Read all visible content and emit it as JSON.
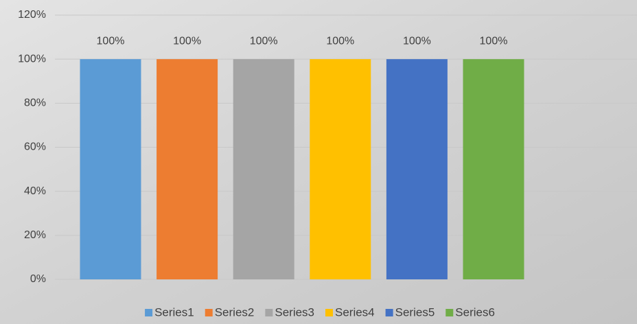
{
  "chart_data": {
    "type": "bar",
    "categories": [
      null
    ],
    "series": [
      {
        "name": "Series1",
        "color": "#5b9bd5",
        "values": [
          100
        ],
        "value_labels": [
          "100%"
        ]
      },
      {
        "name": "Series2",
        "color": "#ed7d31",
        "values": [
          100
        ],
        "value_labels": [
          "100%"
        ]
      },
      {
        "name": "Series3",
        "color": "#a5a5a5",
        "values": [
          100
        ],
        "value_labels": [
          "100%"
        ]
      },
      {
        "name": "Series4",
        "color": "#ffc000",
        "values": [
          100
        ],
        "value_labels": [
          "100%"
        ]
      },
      {
        "name": "Series5",
        "color": "#4472c4",
        "values": [
          100
        ],
        "value_labels": [
          "100%"
        ]
      },
      {
        "name": "Series6",
        "color": "#70ad47",
        "values": [
          100
        ],
        "value_labels": [
          "100%"
        ]
      }
    ],
    "ylim": [
      0,
      120
    ],
    "yticks": [
      {
        "value": 0,
        "label": "0%"
      },
      {
        "value": 20,
        "label": "20%"
      },
      {
        "value": 40,
        "label": "40%"
      },
      {
        "value": 60,
        "label": "60%"
      },
      {
        "value": 80,
        "label": "80%"
      },
      {
        "value": 100,
        "label": "100%"
      },
      {
        "value": 120,
        "label": "120%"
      }
    ],
    "grid": true,
    "legend": "bottom"
  }
}
